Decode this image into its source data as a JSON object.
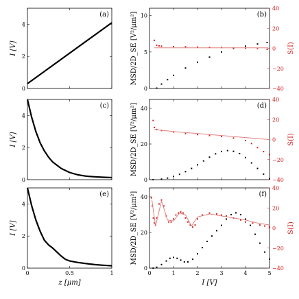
{
  "colors": {
    "black": "#000000",
    "red": "#d62020"
  },
  "chart_data": [
    {
      "panel": "(a)",
      "type": "line",
      "xlabel": "",
      "ylabel": "I [V]",
      "xlim": [
        0,
        1
      ],
      "ylim": [
        0,
        5
      ],
      "xticks": [
        0,
        0.5,
        1
      ],
      "xtick_labels": [
        "",
        "",
        ""
      ],
      "yticks": [
        0,
        2,
        4
      ],
      "ytick_labels": [
        "0",
        "2",
        "4"
      ],
      "series": [
        {
          "style": "line",
          "color": "#000000",
          "x": [
            0,
            1
          ],
          "y": [
            0.3,
            4.1
          ]
        }
      ]
    },
    {
      "panel": "(b)",
      "type": "scatter",
      "xlabel": "",
      "ylabel": "MSD/2D_SE [V²/μm²]",
      "ylabel_right": "S(I)",
      "xlim": [
        0,
        5
      ],
      "ylim": [
        0,
        11
      ],
      "ylim_right": [
        -40,
        40
      ],
      "xticks": [
        0,
        1,
        2,
        3,
        4,
        5
      ],
      "xtick_labels": [
        "",
        "",
        "",
        "",
        "",
        ""
      ],
      "yticks": [
        0,
        5,
        10
      ],
      "ytick_labels": [
        "0",
        "5",
        "10"
      ],
      "yticks_right": [
        -40,
        -20,
        0,
        20,
        40
      ],
      "ytick_labels_right": [
        "−40",
        "−20",
        "0",
        "20",
        "40"
      ],
      "series": [
        {
          "style": "points",
          "color": "#000000",
          "axis": "left",
          "x": [
            0.3,
            0.5,
            0.75,
            1,
            1.5,
            2,
            2.5,
            3,
            3.5,
            4,
            4.5,
            4.9
          ],
          "y": [
            0.05,
            0.6,
            1.2,
            1.8,
            2.8,
            3.6,
            4.3,
            5.0,
            5.5,
            5.8,
            6.1,
            6.3
          ]
        },
        {
          "style": "points",
          "color": "#d62020",
          "axis": "right",
          "x": [
            0.2,
            0.3,
            0.4,
            0.5,
            1,
            1.5,
            2,
            2.5,
            3,
            3.5,
            4,
            4.5,
            4.9
          ],
          "y": [
            8,
            3,
            2.5,
            2.2,
            1.8,
            1.5,
            1.2,
            1.0,
            0.8,
            0.5,
            0.2,
            0,
            -1
          ]
        },
        {
          "style": "line",
          "color": "#e08080",
          "axis": "right",
          "x": [
            0.2,
            4.95
          ],
          "y": [
            0.5,
            0.5
          ]
        }
      ]
    },
    {
      "panel": "(c)",
      "type": "line",
      "xlabel": "",
      "ylabel": "I [V]",
      "xlim": [
        0,
        1
      ],
      "ylim": [
        0,
        5
      ],
      "xticks": [
        0,
        0.5,
        1
      ],
      "xtick_labels": [
        "",
        "",
        ""
      ],
      "yticks": [
        0,
        2,
        4
      ],
      "ytick_labels": [
        "0",
        "2",
        "4"
      ],
      "series": [
        {
          "style": "line",
          "color": "#000000",
          "x": [
            0,
            0.05,
            0.1,
            0.15,
            0.2,
            0.25,
            0.3,
            0.4,
            0.5,
            0.6,
            0.7,
            0.8,
            0.9,
            1
          ],
          "y": [
            5,
            3.9,
            3.0,
            2.3,
            1.8,
            1.4,
            1.1,
            0.7,
            0.45,
            0.3,
            0.22,
            0.18,
            0.15,
            0.13
          ]
        }
      ]
    },
    {
      "panel": "(d)",
      "type": "scatter",
      "xlabel": "",
      "ylabel": "MSD/2D_SE [V²/μm²]",
      "ylabel_right": "S(I)",
      "xlim": [
        0,
        5
      ],
      "ylim": [
        0,
        45
      ],
      "ylim_right": [
        -40,
        40
      ],
      "xticks": [
        0,
        1,
        2,
        3,
        4,
        5
      ],
      "xtick_labels": [
        "",
        "",
        "",
        "",
        "",
        ""
      ],
      "yticks": [
        0,
        20,
        40
      ],
      "ytick_labels": [
        "0",
        "20",
        "40"
      ],
      "yticks_right": [
        -40,
        -20,
        0,
        20,
        40
      ],
      "ytick_labels_right": [
        "−40",
        "−20",
        "0",
        "20",
        "40"
      ],
      "series": [
        {
          "style": "points",
          "color": "#000000",
          "axis": "left",
          "x": [
            0.15,
            0.5,
            0.75,
            1,
            1.25,
            1.5,
            1.75,
            2,
            2.25,
            2.5,
            2.75,
            3,
            3.25,
            3.5,
            3.75,
            4,
            4.25,
            4.5,
            4.75,
            5
          ],
          "y": [
            0,
            0.3,
            0.9,
            1.8,
            3.0,
            4.5,
            6.3,
            8.3,
            10.5,
            12.6,
            14.5,
            15.8,
            16.3,
            15.9,
            14.6,
            12.4,
            9.4,
            6.3,
            3.1,
            0.5
          ]
        },
        {
          "style": "points",
          "color": "#d62020",
          "axis": "right",
          "x": [
            0.15,
            0.2,
            0.3,
            0.5,
            1,
            1.5,
            2,
            2.5,
            3,
            3.5,
            4,
            4.25,
            4.5,
            4.75,
            5
          ],
          "y": [
            19,
            12,
            10,
            9,
            7.5,
            6,
            5,
            4,
            3,
            1.5,
            -1,
            -4,
            -8,
            -12,
            -15
          ]
        },
        {
          "style": "line",
          "color": "#e08080",
          "axis": "right",
          "x": [
            0.2,
            1,
            2,
            3,
            4,
            5
          ],
          "y": [
            10,
            8,
            6,
            4,
            2,
            0
          ]
        }
      ]
    },
    {
      "panel": "(e)",
      "type": "line",
      "xlabel": "z [μm]",
      "ylabel": "I [V]",
      "xlim": [
        0,
        1
      ],
      "ylim": [
        0,
        5
      ],
      "xticks": [
        0,
        0.5,
        1
      ],
      "xtick_labels": [
        "0",
        "0.5",
        "1"
      ],
      "yticks": [
        0,
        2,
        4
      ],
      "ytick_labels": [
        "0",
        "2",
        "4"
      ],
      "series": [
        {
          "style": "line",
          "color": "#000000",
          "x": [
            0,
            0.05,
            0.1,
            0.15,
            0.2,
            0.25,
            0.3,
            0.35,
            0.4,
            0.45,
            0.5,
            0.6,
            0.7,
            0.8,
            0.9,
            1
          ],
          "y": [
            5,
            3.9,
            3.0,
            2.3,
            1.75,
            1.45,
            1.25,
            1.0,
            0.75,
            0.55,
            0.45,
            0.35,
            0.28,
            0.22,
            0.18,
            0.15
          ]
        }
      ]
    },
    {
      "panel": "(f)",
      "type": "scatter",
      "xlabel": "I [V]",
      "ylabel": "MSD/2D_SE [V²/μm²]",
      "ylabel_right": "S(I)",
      "xlim": [
        0,
        5
      ],
      "ylim": [
        0,
        45
      ],
      "ylim_right": [
        -40,
        40
      ],
      "xticks": [
        0,
        1,
        2,
        3,
        4,
        5
      ],
      "xtick_labels": [
        "0",
        "1",
        "2",
        "3",
        "4",
        "5"
      ],
      "yticks": [
        0,
        20,
        40
      ],
      "ytick_labels": [
        "0",
        "20",
        "40"
      ],
      "yticks_right": [
        -40,
        -20,
        0,
        20,
        40
      ],
      "ytick_labels_right": [
        "−40",
        "−20",
        "0",
        "20",
        "40"
      ],
      "series": [
        {
          "style": "points",
          "color": "#000000",
          "axis": "left",
          "x": [
            0.15,
            0.3,
            0.5,
            0.7,
            0.85,
            1,
            1.15,
            1.3,
            1.45,
            1.6,
            1.8,
            2,
            2.2,
            2.4,
            2.6,
            2.8,
            3,
            3.2,
            3.4,
            3.6,
            3.8,
            4,
            4.2,
            4.4,
            4.6,
            4.8,
            5
          ],
          "y": [
            0,
            0.5,
            2,
            4,
            5.5,
            6,
            5.5,
            4.5,
            3.5,
            3.5,
            5,
            8,
            11.5,
            15,
            18,
            21,
            24,
            27.5,
            30,
            31,
            30,
            27.5,
            24,
            19,
            14,
            9,
            5
          ]
        },
        {
          "style": "points",
          "color": "#d62020",
          "axis": "right",
          "x": [
            0.08,
            0.12,
            0.16,
            0.2,
            0.25,
            0.3,
            0.4,
            0.5,
            0.6,
            0.7,
            0.8,
            0.9,
            1,
            1.1,
            1.2,
            1.3,
            1.4,
            1.5,
            1.6,
            1.7,
            1.8,
            1.9,
            2,
            2.2,
            2.5,
            2.8,
            3,
            3.2,
            3.5,
            3.8,
            4,
            4.3,
            4.6,
            4.8,
            5
          ],
          "y": [
            30,
            22,
            10,
            5,
            3,
            10,
            24,
            28,
            22,
            12,
            6,
            6,
            9,
            13,
            15,
            16,
            15,
            10,
            6,
            3,
            1,
            3,
            9,
            13,
            15,
            14,
            13,
            12,
            10,
            8,
            6,
            5,
            3,
            2,
            1
          ]
        },
        {
          "style": "line",
          "color": "#e08080",
          "axis": "right",
          "x": [
            0.1,
            0.25,
            0.5,
            0.75,
            1,
            1.25,
            1.5,
            1.75,
            2,
            2.5,
            3,
            3.5,
            4,
            4.5,
            5
          ],
          "y": [
            28,
            2,
            27,
            8,
            7,
            15,
            13,
            2,
            11,
            14,
            12,
            10,
            8,
            5,
            3
          ]
        }
      ]
    }
  ]
}
